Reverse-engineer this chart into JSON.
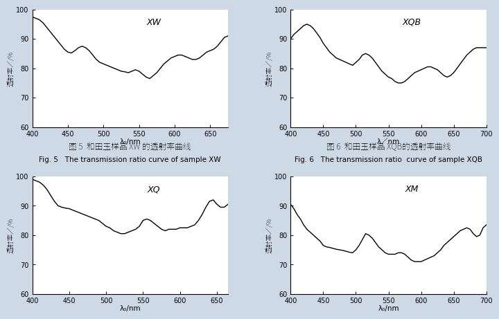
{
  "fig_width": 7.2,
  "fig_height": 4.42,
  "bg_color": "#cdd9e5",
  "panel_bg": "#ffffff",
  "line_color": "#000000",
  "line_width": 1.0,
  "xw": {
    "title": "XW",
    "xlabel": "λ₀/nm",
    "ylabel": "透射率／/%",
    "xlim": [
      400,
      675
    ],
    "ylim": [
      60,
      100
    ],
    "xticks": [
      400,
      450,
      500,
      550,
      600,
      650
    ],
    "yticks": [
      60,
      70,
      80,
      90,
      100
    ],
    "x": [
      400,
      405,
      410,
      415,
      420,
      425,
      430,
      435,
      440,
      445,
      450,
      455,
      460,
      465,
      470,
      475,
      480,
      485,
      490,
      495,
      500,
      505,
      510,
      515,
      520,
      525,
      530,
      535,
      540,
      545,
      550,
      555,
      560,
      565,
      570,
      575,
      580,
      585,
      590,
      595,
      600,
      605,
      610,
      615,
      620,
      625,
      630,
      635,
      640,
      645,
      650,
      655,
      660,
      665,
      670,
      675
    ],
    "y": [
      97.5,
      97.0,
      96.5,
      95.5,
      94.0,
      92.5,
      91.0,
      89.5,
      88.0,
      86.5,
      85.5,
      85.2,
      86.0,
      87.0,
      87.5,
      87.0,
      86.0,
      84.5,
      83.0,
      82.0,
      81.5,
      81.0,
      80.5,
      80.0,
      79.5,
      79.0,
      78.8,
      78.5,
      79.0,
      79.5,
      79.0,
      78.0,
      77.0,
      76.5,
      77.5,
      78.5,
      80.0,
      81.5,
      82.5,
      83.5,
      84.0,
      84.5,
      84.5,
      84.0,
      83.5,
      83.0,
      83.0,
      83.5,
      84.5,
      85.5,
      86.0,
      86.5,
      87.5,
      89.0,
      90.5,
      91.0
    ],
    "caption_zh": "图 5  和田玉样品 XW 的透射率曲线",
    "caption_en": "Fig. 5   The transmission ratio curve of sample XW"
  },
  "xqb": {
    "title": "XQB",
    "xlabel": "λ／nm",
    "ylabel": "透射率／/%",
    "xlim": [
      400,
      700
    ],
    "ylim": [
      60,
      100
    ],
    "xticks": [
      400,
      450,
      500,
      550,
      600,
      650,
      700
    ],
    "yticks": [
      60,
      70,
      80,
      90,
      100
    ],
    "x": [
      400,
      405,
      410,
      415,
      420,
      425,
      430,
      435,
      440,
      445,
      450,
      455,
      460,
      465,
      470,
      475,
      480,
      485,
      490,
      495,
      500,
      505,
      510,
      515,
      520,
      525,
      530,
      535,
      540,
      545,
      550,
      555,
      560,
      565,
      570,
      575,
      580,
      585,
      590,
      595,
      600,
      605,
      610,
      615,
      620,
      625,
      630,
      635,
      640,
      645,
      650,
      655,
      660,
      665,
      670,
      675,
      680,
      685,
      690,
      695,
      700
    ],
    "y": [
      90.0,
      91.5,
      92.5,
      93.5,
      94.5,
      95.0,
      94.5,
      93.5,
      92.0,
      90.5,
      88.5,
      87.0,
      85.5,
      84.5,
      83.5,
      83.0,
      82.5,
      82.0,
      81.5,
      81.0,
      82.0,
      83.0,
      84.5,
      85.0,
      84.5,
      83.5,
      82.0,
      80.5,
      79.0,
      78.0,
      77.0,
      76.5,
      75.5,
      75.0,
      75.0,
      75.5,
      76.5,
      77.5,
      78.5,
      79.0,
      79.5,
      80.0,
      80.5,
      80.5,
      80.0,
      79.5,
      78.5,
      77.5,
      77.0,
      77.5,
      78.5,
      80.0,
      81.5,
      83.0,
      84.5,
      85.5,
      86.5,
      87.0,
      87.0,
      87.0,
      87.0
    ],
    "caption_zh": "图 6  和田玉样品 XQB的透射率曲线",
    "caption_en": "Fig. 6   The transmission ratio  curve of sample XQB"
  },
  "xq": {
    "title": "XQ",
    "xlabel": "λ₀/nm",
    "ylabel": "透射率／/%",
    "xlim": [
      400,
      665
    ],
    "ylim": [
      60,
      100
    ],
    "xticks": [
      400,
      450,
      500,
      550,
      600,
      650
    ],
    "yticks": [
      60,
      70,
      80,
      90,
      100
    ],
    "x": [
      400,
      405,
      410,
      415,
      420,
      425,
      430,
      435,
      440,
      445,
      450,
      455,
      460,
      465,
      470,
      475,
      480,
      485,
      490,
      495,
      500,
      505,
      510,
      515,
      520,
      525,
      530,
      535,
      540,
      545,
      550,
      555,
      560,
      565,
      570,
      575,
      580,
      585,
      590,
      595,
      600,
      605,
      610,
      615,
      620,
      625,
      630,
      635,
      640,
      645,
      650,
      655,
      660,
      665
    ],
    "y": [
      99.0,
      98.5,
      98.0,
      97.0,
      95.5,
      93.5,
      91.5,
      90.0,
      89.5,
      89.2,
      89.0,
      88.5,
      88.0,
      87.5,
      87.0,
      86.5,
      86.0,
      85.5,
      85.0,
      84.0,
      83.0,
      82.5,
      81.5,
      81.0,
      80.5,
      80.5,
      81.0,
      81.5,
      82.0,
      83.0,
      85.0,
      85.5,
      85.0,
      84.0,
      83.0,
      82.0,
      81.5,
      82.0,
      82.0,
      82.0,
      82.5,
      82.5,
      82.5,
      83.0,
      83.5,
      85.0,
      87.0,
      89.5,
      91.5,
      92.0,
      90.5,
      89.5,
      89.5,
      90.5
    ],
    "caption_zh": "",
    "caption_en": ""
  },
  "xm": {
    "title": "XM",
    "xlabel": "λ₀/nm",
    "ylabel": "透射率／/%",
    "xlim": [
      400,
      700
    ],
    "ylim": [
      60,
      100
    ],
    "xticks": [
      400,
      450,
      500,
      550,
      600,
      650,
      700
    ],
    "yticks": [
      60,
      70,
      80,
      90,
      100
    ],
    "x": [
      400,
      405,
      410,
      415,
      420,
      425,
      430,
      435,
      440,
      445,
      450,
      455,
      460,
      465,
      470,
      475,
      480,
      485,
      490,
      495,
      500,
      505,
      510,
      515,
      520,
      525,
      530,
      535,
      540,
      545,
      550,
      555,
      560,
      565,
      570,
      575,
      580,
      585,
      590,
      595,
      600,
      605,
      610,
      615,
      620,
      625,
      630,
      635,
      640,
      645,
      650,
      655,
      660,
      665,
      670,
      675,
      680,
      685,
      690,
      695,
      700
    ],
    "y": [
      90.5,
      89.0,
      87.0,
      85.5,
      83.5,
      82.0,
      81.0,
      80.0,
      79.0,
      78.0,
      76.5,
      76.0,
      75.8,
      75.5,
      75.2,
      75.0,
      74.8,
      74.5,
      74.2,
      74.0,
      75.0,
      76.5,
      78.5,
      80.5,
      80.0,
      79.0,
      77.5,
      76.0,
      75.0,
      74.0,
      73.5,
      73.5,
      73.5,
      74.0,
      74.0,
      73.5,
      72.5,
      71.5,
      71.0,
      71.0,
      71.0,
      71.5,
      72.0,
      72.5,
      73.0,
      74.0,
      75.0,
      76.5,
      77.5,
      78.5,
      79.5,
      80.5,
      81.5,
      82.0,
      82.5,
      82.0,
      80.5,
      79.5,
      80.0,
      82.5,
      83.5
    ],
    "caption_zh": "",
    "caption_en": ""
  }
}
